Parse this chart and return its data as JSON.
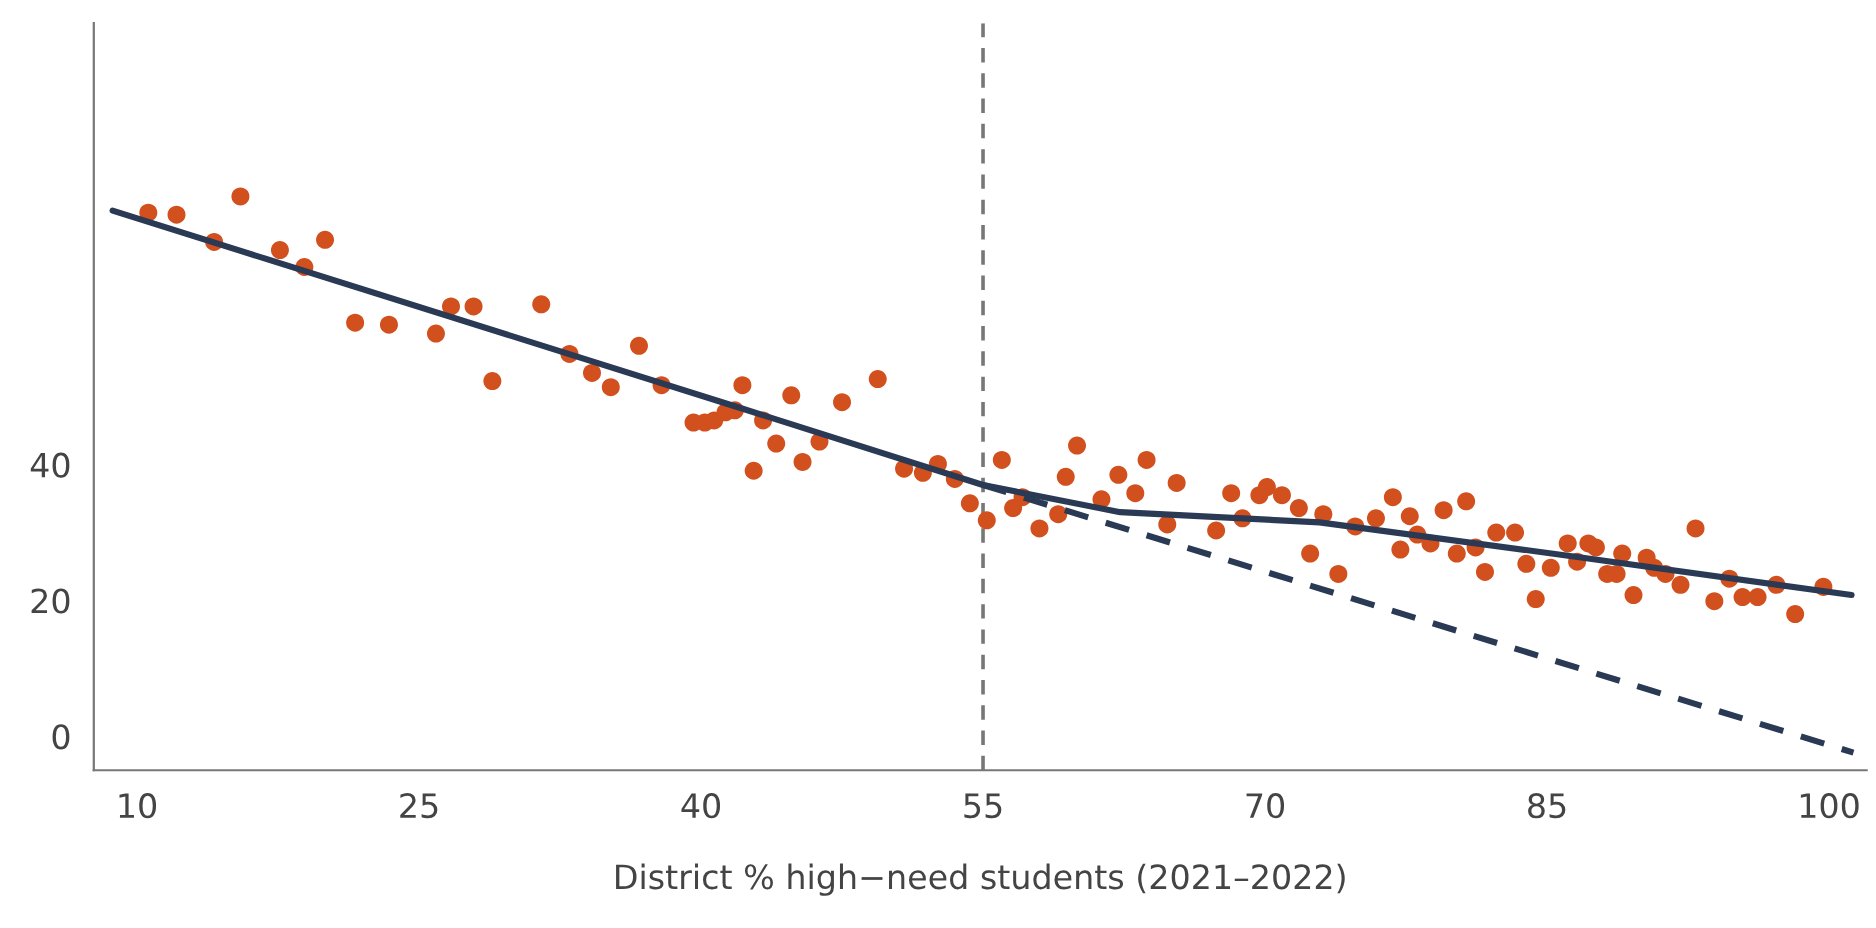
{
  "chart_data": {
    "type": "scatter",
    "xlabel": "District % high−need students (2021–2022)",
    "xlim": [
      7.7,
      102
    ],
    "xticks": [
      10,
      25,
      40,
      55,
      70,
      85,
      100
    ],
    "ylim": [
      -5,
      105
    ],
    "yticks": [
      0,
      20,
      40
    ],
    "grid": false,
    "legend": false,
    "series": [
      {
        "color": "#d2501d",
        "marker": "circle",
        "x": [
          10.6,
          12.1,
          14.1,
          15.5,
          17.6,
          18.9,
          20.0,
          21.6,
          23.4,
          25.9,
          26.7,
          27.9,
          28.9,
          31.5,
          33.0,
          34.2,
          35.2,
          36.7,
          37.9,
          39.6,
          40.2,
          40.7,
          41.3,
          41.8,
          42.2,
          42.8,
          43.3,
          44.0,
          44.8,
          45.4,
          46.3,
          47.5,
          49.4,
          50.8,
          51.8,
          52.6,
          53.5,
          54.3,
          55.2,
          56.0,
          56.6,
          57.1,
          58.0,
          59.0,
          59.4,
          60.0,
          61.3,
          62.2,
          63.1,
          63.7,
          64.8,
          65.3,
          67.4,
          68.2,
          68.8,
          69.7,
          70.1,
          70.9,
          71.8,
          72.4,
          73.1,
          73.9,
          74.8,
          75.9,
          76.8,
          77.2,
          77.7,
          78.1,
          78.8,
          79.5,
          80.2,
          80.7,
          81.2,
          81.7,
          82.3,
          83.3,
          83.9,
          84.4,
          85.2,
          86.1,
          86.6,
          87.2,
          87.6,
          88.2,
          88.7,
          89.0,
          89.6,
          90.3,
          90.7,
          91.3,
          92.1,
          92.9,
          93.9,
          94.7,
          95.4,
          96.2,
          97.2,
          98.2,
          99.7
        ],
        "values": [
          77.1,
          76.8,
          72.8,
          79.5,
          71.6,
          69.1,
          73.1,
          60.9,
          60.6,
          59.3,
          63.3,
          63.3,
          52.3,
          63.6,
          56.3,
          53.5,
          51.4,
          57.5,
          51.7,
          46.2,
          46.2,
          46.5,
          47.7,
          48.0,
          51.7,
          39.1,
          46.5,
          43.1,
          50.2,
          40.4,
          43.4,
          49.2,
          52.6,
          39.4,
          38.8,
          40.1,
          37.9,
          34.3,
          31.8,
          40.7,
          33.6,
          35.2,
          30.6,
          32.7,
          38.2,
          42.8,
          34.9,
          38.5,
          35.8,
          40.7,
          31.2,
          37.3,
          30.3,
          35.8,
          32.1,
          35.5,
          36.7,
          35.5,
          33.6,
          26.9,
          32.7,
          23.9,
          30.9,
          32.1,
          35.2,
          27.5,
          32.4,
          29.7,
          28.4,
          33.3,
          26.9,
          34.6,
          27.8,
          24.2,
          30.0,
          30.0,
          25.4,
          20.2,
          24.8,
          28.4,
          25.7,
          28.4,
          27.8,
          23.9,
          23.9,
          26.9,
          20.8,
          26.3,
          24.8,
          23.9,
          22.3,
          30.6,
          19.9,
          23.2,
          20.5,
          20.5,
          22.3,
          18.0,
          22.0
        ]
      },
      {
        "type": "line",
        "color": "#2a3a55",
        "line_style": "solid",
        "x": [
          8.7,
          41.8,
          55,
          62.3,
          72.9,
          86.9,
          101.2
        ],
        "values": [
          77.4,
          48.6,
          37.0,
          33.0,
          31.5,
          26.3,
          20.8
        ]
      },
      {
        "type": "line",
        "color": "#2a3a55",
        "line_style": "dashed",
        "x": [
          55,
          101.3
        ],
        "values": [
          37.0,
          -2.4
        ]
      }
    ],
    "ref_lines": [
      {
        "axis": "x",
        "value": 55,
        "color": "#777777",
        "line_style": "dashed"
      }
    ]
  }
}
